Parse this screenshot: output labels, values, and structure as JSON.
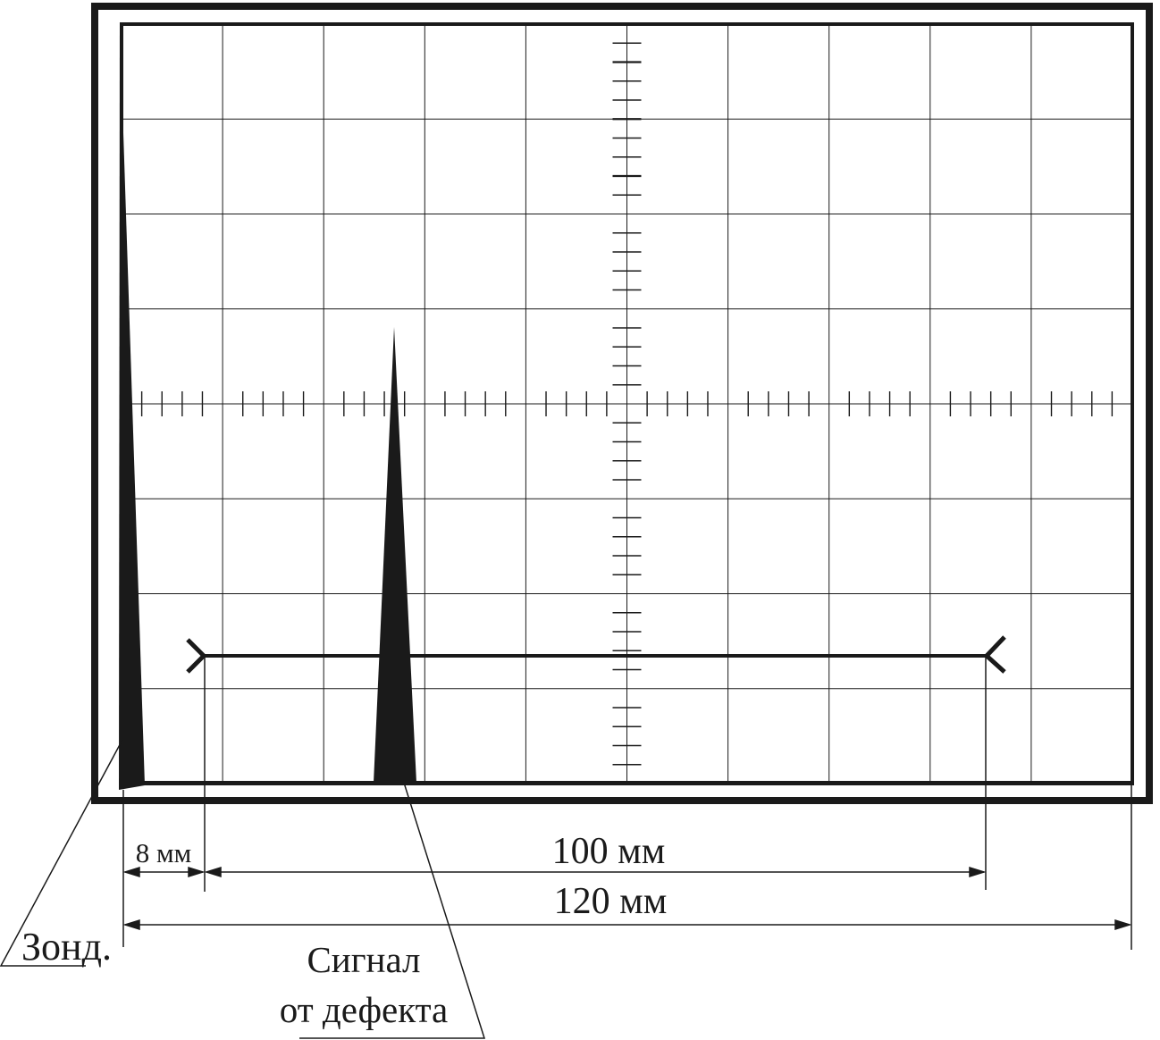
{
  "labels": {
    "gap": "8 мм",
    "span_inner": "100 мм",
    "span_total": "120 мм",
    "probe": "Зонд.",
    "defect_line1": "Сигнал",
    "defect_line2": "от дефекта"
  },
  "colors": {
    "ink": "#1a1a1a",
    "background": "#ffffff"
  },
  "screen": {
    "grid_columns": 10,
    "grid_rows": 8,
    "minor_ticks_per_division": 5
  }
}
